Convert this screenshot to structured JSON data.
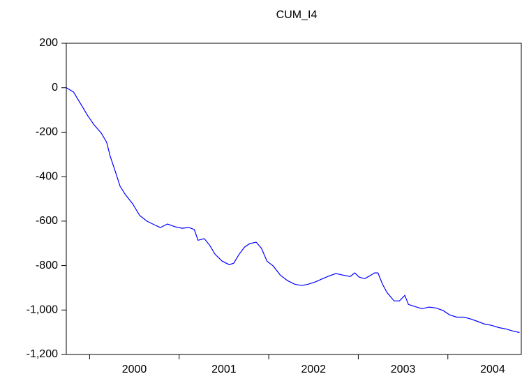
{
  "chart_data": {
    "type": "line",
    "title": "CUM_I4",
    "x": [
      1999.74,
      1999.82,
      1999.9,
      1999.98,
      2000.05,
      2000.13,
      2000.19,
      2000.23,
      2000.29,
      2000.34,
      2000.4,
      2000.48,
      2000.56,
      2000.64,
      2000.72,
      2000.79,
      2000.87,
      2000.95,
      2001.03,
      2001.11,
      2001.17,
      2001.21,
      2001.28,
      2001.34,
      2001.4,
      2001.48,
      2001.56,
      2001.61,
      2001.67,
      2001.73,
      2001.79,
      2001.86,
      2001.92,
      2001.98,
      2002.05,
      2002.13,
      2002.21,
      2002.29,
      2002.37,
      2002.44,
      2002.52,
      2002.6,
      2002.68,
      2002.75,
      2002.83,
      2002.91,
      2002.96,
      2003.01,
      2003.07,
      2003.13,
      2003.18,
      2003.22,
      2003.27,
      2003.32,
      2003.4,
      2003.46,
      2003.52,
      2003.56,
      2003.63,
      2003.71,
      2003.79,
      2003.87,
      2003.95,
      2004.02,
      2004.1,
      2004.18,
      2004.26,
      2004.33,
      2004.41,
      2004.49,
      2004.57,
      2004.65,
      2004.72,
      2004.8
    ],
    "series": [
      {
        "name": "CUM_I4",
        "color": "#0000ff",
        "values": [
          0,
          -19,
          -72,
          -126,
          -167,
          -204,
          -245,
          -308,
          -380,
          -443,
          -481,
          -522,
          -575,
          -600,
          -616,
          -629,
          -613,
          -625,
          -632,
          -629,
          -638,
          -686,
          -679,
          -708,
          -749,
          -780,
          -796,
          -789,
          -749,
          -717,
          -701,
          -695,
          -723,
          -780,
          -802,
          -843,
          -868,
          -884,
          -890,
          -884,
          -874,
          -859,
          -846,
          -836,
          -843,
          -849,
          -833,
          -852,
          -859,
          -846,
          -833,
          -833,
          -884,
          -921,
          -959,
          -959,
          -934,
          -975,
          -984,
          -994,
          -987,
          -991,
          -1003,
          -1022,
          -1032,
          -1032,
          -1041,
          -1051,
          -1063,
          -1069,
          -1079,
          -1085,
          -1094,
          -1101
        ]
      }
    ],
    "xlim": [
      1999.74,
      2004.82
    ],
    "xticks": [
      {
        "value": 2000,
        "label": "2000"
      },
      {
        "value": 2001,
        "label": "2001"
      },
      {
        "value": 2002,
        "label": "2002"
      },
      {
        "value": 2003,
        "label": "2003"
      },
      {
        "value": 2004,
        "label": "2004"
      }
    ],
    "ylim": [
      -1200,
      200
    ],
    "yticks": [
      {
        "value": -1200,
        "label": "-1,200"
      },
      {
        "value": -1000,
        "label": "-1,000"
      },
      -800,
      -600,
      -400,
      -200,
      0,
      200
    ]
  }
}
